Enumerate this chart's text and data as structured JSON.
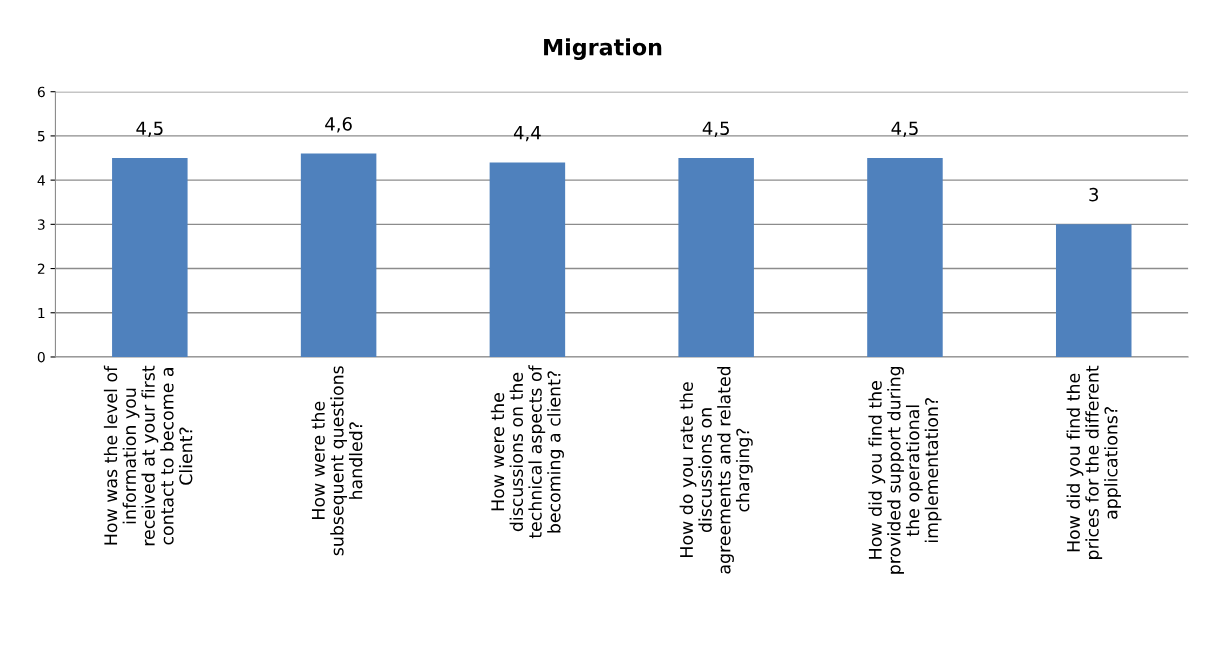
{
  "chart_data": {
    "type": "bar",
    "title": "Migration",
    "categories": [
      "How was the level of\ninformation you\nreceived at your first\ncontact to become a\nClient?",
      "How were the\nsubsequent questions\nhandled?",
      "How were the\ndiscussions on the\ntechnical aspects of\nbecoming a client?",
      "How do you rate the\ndiscussions on\nagreements and related\ncharging?",
      "How did you find the\nprovided support during\nthe operational\nimplementation?",
      "How did you find the\nprices for the different\napplications?"
    ],
    "values": [
      4.5,
      4.6,
      4.4,
      4.5,
      4.5,
      3
    ],
    "value_labels": [
      "4,5",
      "4,6",
      "4,4",
      "4,5",
      "4,5",
      "3"
    ],
    "color": "#4f81bd",
    "ylim": [
      0,
      6
    ],
    "yticks": [
      0,
      1,
      2,
      3,
      4,
      5,
      6
    ],
    "grid": "y",
    "legend": false
  }
}
